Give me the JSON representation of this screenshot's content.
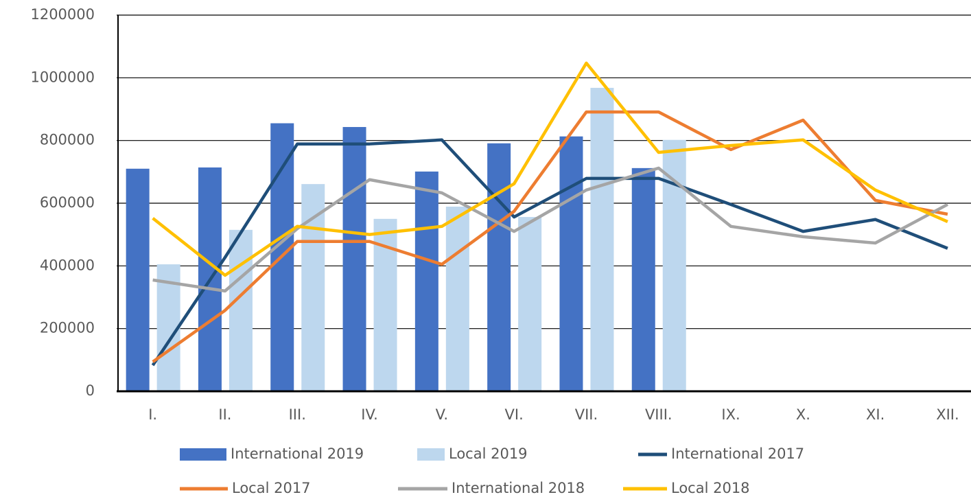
{
  "chart_data": {
    "type": "combo",
    "categories": [
      "I.",
      "II.",
      "III.",
      "IV.",
      "V.",
      "VI.",
      "VII.",
      "VIII.",
      "IX.",
      "X.",
      "XI.",
      "XII."
    ],
    "ylim": [
      0,
      1200000
    ],
    "yticks": [
      0,
      200000,
      400000,
      600000,
      800000,
      1000000,
      1200000
    ],
    "grid": true,
    "legend": "bottom",
    "series": [
      {
        "name": "International 2019",
        "type": "bar",
        "color": "#4472c4",
        "values": [
          710000,
          714000,
          855000,
          843000,
          701000,
          791000,
          813000,
          712000,
          null,
          null,
          null,
          null
        ]
      },
      {
        "name": "Local 2019",
        "type": "bar",
        "color": "#bdd7ee",
        "values": [
          405000,
          515000,
          661000,
          550000,
          589000,
          556000,
          968000,
          802000,
          null,
          null,
          null,
          null
        ]
      },
      {
        "name": "International 2017",
        "type": "line",
        "color": "#1f4e79",
        "values": [
          83000,
          427000,
          789000,
          789000,
          802000,
          556000,
          679000,
          679000,
          596000,
          510000,
          548000,
          456000
        ]
      },
      {
        "name": "Local 2017",
        "type": "line",
        "color": "#ed7d31",
        "values": [
          94000,
          258000,
          478000,
          478000,
          405000,
          574000,
          891000,
          891000,
          771000,
          865000,
          609000,
          565000
        ]
      },
      {
        "name": "International 2018",
        "type": "line",
        "color": "#a5a5a5",
        "values": [
          355000,
          320000,
          519000,
          675000,
          633000,
          510000,
          642000,
          712000,
          526000,
          493000,
          473000,
          596000
        ]
      },
      {
        "name": "Local 2018",
        "type": "line",
        "color": "#ffc000",
        "values": [
          552000,
          370000,
          526000,
          500000,
          526000,
          662000,
          1047000,
          762000,
          784000,
          802000,
          642000,
          541000
        ]
      }
    ]
  }
}
